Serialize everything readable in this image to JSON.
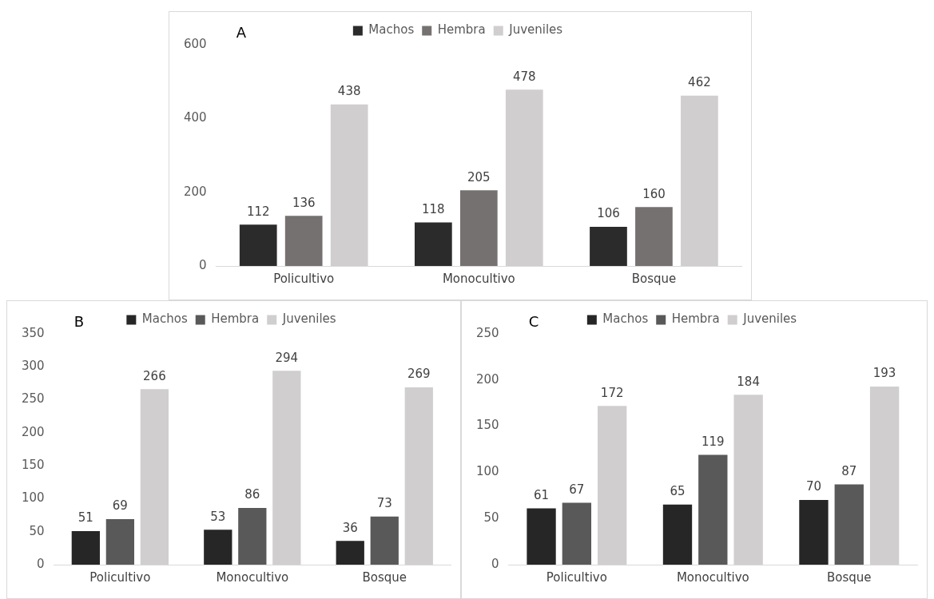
{
  "chart_data": [
    {
      "type": "bar",
      "annotations": [
        "A"
      ],
      "categories": [
        "Policultivo",
        "Monocultivo",
        "Bosque"
      ],
      "series": [
        {
          "name": "Machos",
          "color": "#2b2b2b",
          "values": [
            112,
            118,
            106
          ]
        },
        {
          "name": "Hembra",
          "color": "#767171",
          "values": [
            136,
            205,
            160
          ]
        },
        {
          "name": "Juveniles",
          "color": "#d0cece",
          "values": [
            438,
            478,
            462
          ]
        }
      ],
      "ylim": [
        0,
        600
      ],
      "yticks": [
        0,
        200,
        400,
        600
      ],
      "grid": false,
      "legend": "top",
      "data_labels": true
    },
    {
      "type": "bar",
      "annotations": [
        "B"
      ],
      "categories": [
        "Policultivo",
        "Monocultivo",
        "Bosque"
      ],
      "series": [
        {
          "name": "Machos",
          "color": "#262626",
          "values": [
            51,
            53,
            36
          ]
        },
        {
          "name": "Hembra",
          "color": "#595959",
          "values": [
            69,
            86,
            73
          ]
        },
        {
          "name": "Juveniles",
          "color": "#d0cece",
          "values": [
            266,
            294,
            269
          ]
        }
      ],
      "ylim": [
        0,
        350
      ],
      "yticks": [
        0,
        50,
        100,
        150,
        200,
        250,
        300,
        350
      ],
      "grid": false,
      "legend": "top",
      "data_labels": true
    },
    {
      "type": "bar",
      "annotations": [
        "C"
      ],
      "categories": [
        "Policultivo",
        "Monocultivo",
        "Bosque"
      ],
      "series": [
        {
          "name": "Machos",
          "color": "#262626",
          "values": [
            61,
            65,
            70
          ]
        },
        {
          "name": "Hembra",
          "color": "#595959",
          "values": [
            67,
            119,
            87
          ]
        },
        {
          "name": "Juveniles",
          "color": "#d0cece",
          "values": [
            172,
            184,
            193
          ]
        }
      ],
      "ylim": [
        0,
        250
      ],
      "yticks": [
        0,
        50,
        100,
        150,
        200,
        250
      ],
      "grid": false,
      "legend": "top",
      "data_labels": true
    }
  ]
}
